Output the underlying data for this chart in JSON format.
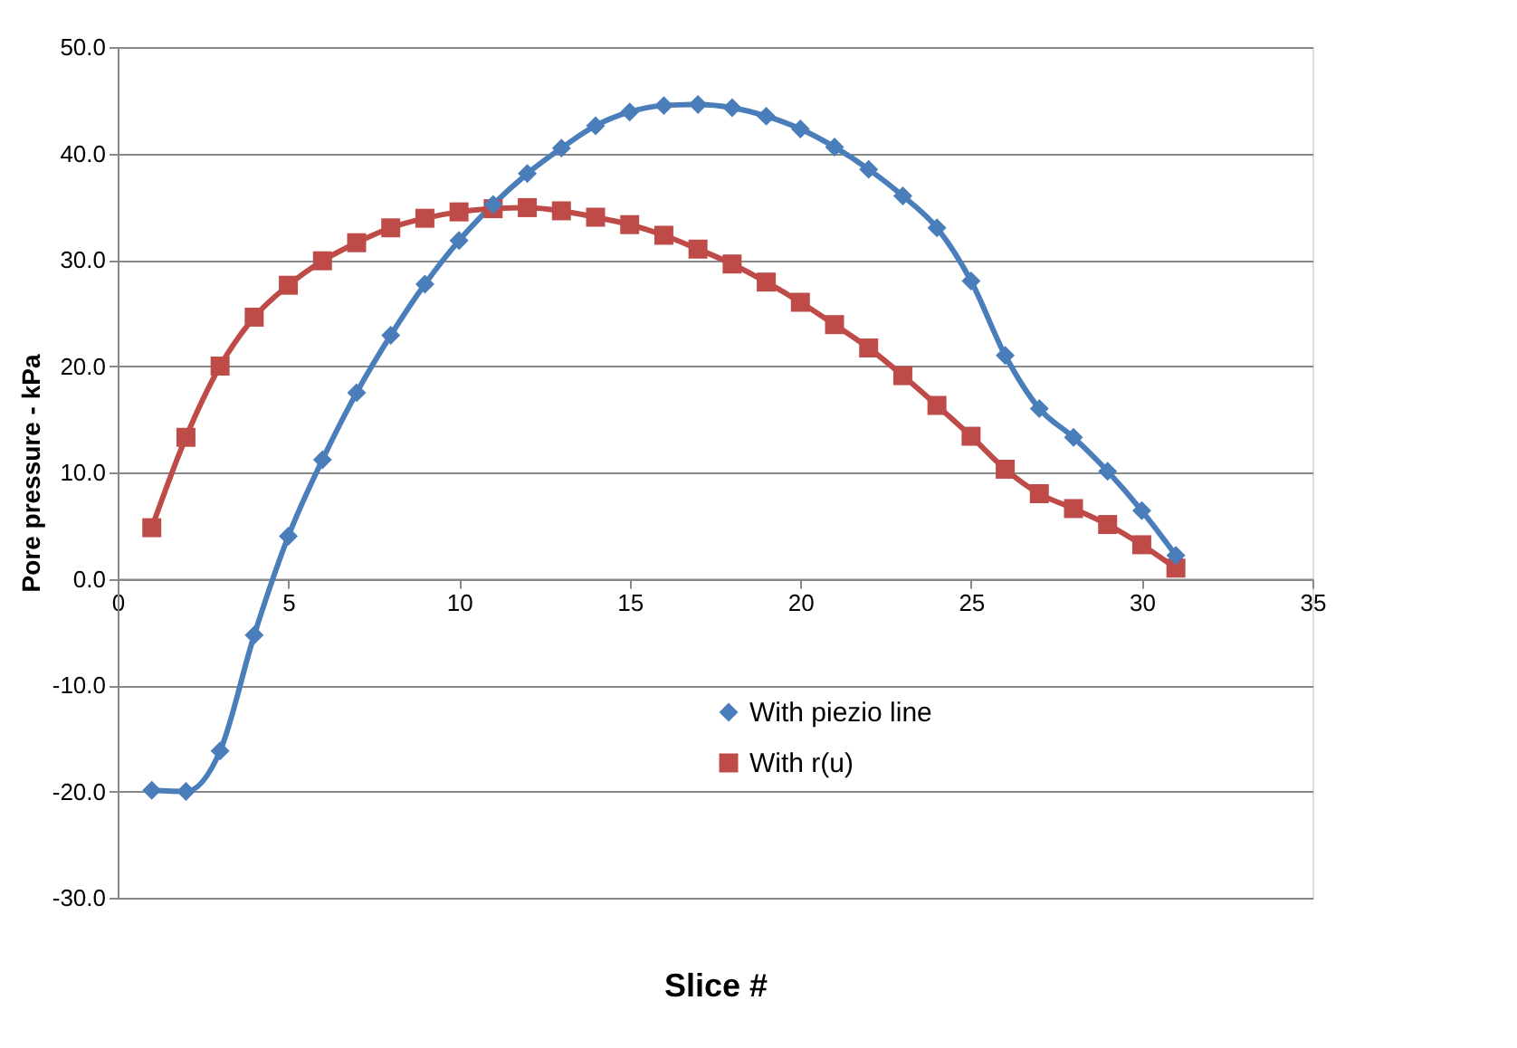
{
  "chart_data": {
    "type": "line",
    "xlabel": "Slice #",
    "ylabel": "Pore pressure - kPa",
    "x": [
      1,
      2,
      3,
      4,
      5,
      6,
      7,
      8,
      9,
      10,
      11,
      12,
      13,
      14,
      15,
      16,
      17,
      18,
      19,
      20,
      21,
      22,
      23,
      24,
      25,
      26,
      27,
      28,
      29,
      30,
      31
    ],
    "series": [
      {
        "name": "With piezio line",
        "color": "#4a7ebb",
        "marker": "diamond",
        "values": [
          -19.9,
          -20.0,
          -16.2,
          -5.3,
          4.0,
          11.2,
          17.5,
          22.9,
          27.7,
          31.8,
          35.2,
          38.1,
          40.5,
          42.6,
          43.9,
          44.5,
          44.6,
          44.3,
          43.5,
          42.3,
          40.6,
          38.5,
          36.0,
          33.0,
          28.0,
          21.0,
          16.0,
          13.3,
          10.1,
          6.4,
          2.2
        ]
      },
      {
        "name": "With r(u)",
        "color": "#be4b48",
        "marker": "square",
        "values": [
          4.8,
          13.3,
          20.0,
          24.6,
          27.6,
          29.9,
          31.6,
          33.0,
          33.9,
          34.5,
          34.8,
          34.9,
          34.6,
          34.0,
          33.3,
          32.3,
          31.0,
          29.6,
          27.9,
          26.0,
          23.9,
          21.7,
          19.1,
          16.3,
          13.4,
          10.3,
          8.0,
          6.6,
          5.1,
          3.2,
          1.0
        ]
      }
    ],
    "xlim": [
      0,
      35
    ],
    "xticks": [
      0,
      5,
      10,
      15,
      20,
      25,
      30,
      35
    ],
    "ylim": [
      -30,
      50
    ],
    "yticks": [
      {
        "value": -30,
        "label": "-30.0"
      },
      {
        "value": -20,
        "label": "-20.0"
      },
      {
        "value": -10,
        "label": "-10.0"
      },
      {
        "value": 0,
        "label": "0.0"
      },
      {
        "value": 10,
        "label": "10.0"
      },
      {
        "value": 20,
        "label": "20.0"
      },
      {
        "value": 30,
        "label": "30.0"
      },
      {
        "value": 40,
        "label": "40.0"
      },
      {
        "value": 50,
        "label": "50.0"
      }
    ],
    "grid": "y",
    "legend": "bottom right",
    "line_style": "solid"
  }
}
